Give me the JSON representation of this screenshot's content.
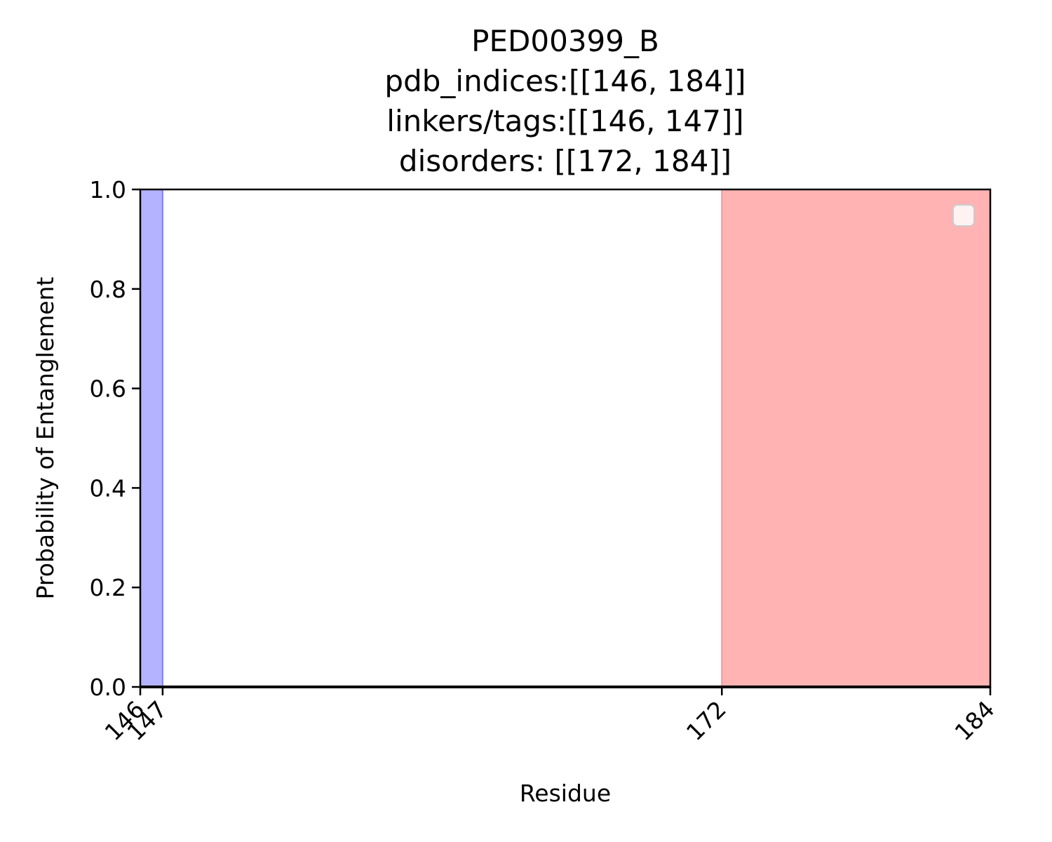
{
  "chart_data": {
    "type": "area",
    "title_lines": [
      "PED00399_B",
      "pdb_indices:[[146, 184]]",
      "linkers/tags:[[146, 147]]",
      "disorders: [[172, 184]]"
    ],
    "xlabel": "Residue",
    "ylabel": "Probability of Entanglement",
    "xlim": [
      146,
      184
    ],
    "ylim": [
      0,
      1
    ],
    "x_ticks": [
      146,
      147,
      172,
      184
    ],
    "x_tick_labels": [
      "146",
      "147",
      "172",
      "184"
    ],
    "y_ticks": [
      0,
      0.2,
      0.4,
      0.6,
      0.8,
      1.0
    ],
    "y_tick_labels": [
      "0.0",
      "0.2",
      "0.4",
      "0.6",
      "0.8",
      "1.0"
    ],
    "spans": [
      {
        "name": "linkers/tags",
        "x0": 146,
        "x1": 147,
        "color": "#b3b3ff"
      },
      {
        "name": "disorders",
        "x0": 172,
        "x1": 184,
        "color": "#ffb3b3"
      }
    ],
    "series": [
      {
        "x": [
          146,
          184
        ],
        "y": [
          0,
          0
        ],
        "color": "#000000"
      }
    ],
    "legend": {
      "position": "top-right",
      "entries": []
    },
    "grid": false
  }
}
